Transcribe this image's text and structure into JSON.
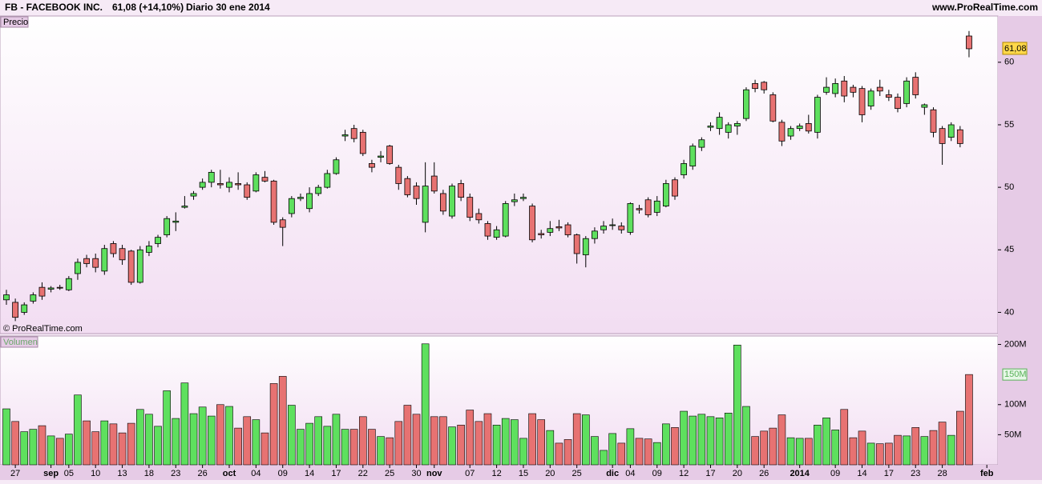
{
  "header": {
    "symbol": "FB - FACEBOOK INC.",
    "quote": "61,08 (+14,10%)",
    "period": "Diario  30 ene 2014",
    "site": "www.ProRealTime.com"
  },
  "chart_data": [
    {
      "type": "candlestick",
      "title": "Precio",
      "watermark": "© ProRealTime.com",
      "up_color": "#5ee05e",
      "down_color": "#e77272",
      "ylim": [
        38.3,
        63.7
      ],
      "yticks": [
        40,
        45,
        50,
        55,
        60
      ],
      "open": [
        41.0,
        40.8,
        40.0,
        40.9,
        42.0,
        41.85,
        42.0,
        41.8,
        43.1,
        44.3,
        44.3,
        43.3,
        45.5,
        45.1,
        44.9,
        42.4,
        44.8,
        45.5,
        46.2,
        47.2,
        48.4,
        49.3,
        50.0,
        50.4,
        50.3,
        50.0,
        50.3,
        50.2,
        49.7,
        50.8,
        50.5,
        47.4,
        47.9,
        49.1,
        48.3,
        49.5,
        50.0,
        51.1,
        54.1,
        54.7,
        54.4,
        51.9,
        52.4,
        53.3,
        51.6,
        50.7,
        50.1,
        47.2,
        50.9,
        49.5,
        47.7,
        50.3,
        49.2,
        47.9,
        47.1,
        46.0,
        46.1,
        48.85,
        49.1,
        48.5,
        46.3,
        46.4,
        46.85,
        47.0,
        46.2,
        44.6,
        45.9,
        46.6,
        46.95,
        46.9,
        46.4,
        48.3,
        49.0,
        48.0,
        48.5,
        50.6,
        51.0,
        51.7,
        53.2,
        54.8,
        54.7,
        54.4,
        54.9,
        55.5,
        58.3,
        58.4,
        57.4,
        55.2,
        54.1,
        54.7,
        55.1,
        54.4,
        57.6,
        57.5,
        58.5,
        58.0,
        57.9,
        56.5,
        58.0,
        57.4,
        57.2,
        56.7,
        58.8,
        56.4,
        56.2,
        54.7,
        54.0,
        54.6,
        62.1,
        null,
        null
      ],
      "high": [
        41.8,
        41.1,
        40.8,
        41.6,
        42.4,
        42.1,
        42.2,
        42.9,
        44.3,
        44.6,
        44.7,
        45.4,
        45.7,
        45.4,
        45.0,
        45.3,
        45.7,
        46.2,
        47.7,
        48.0,
        49.3,
        49.7,
        50.7,
        51.4,
        51.4,
        50.8,
        51.2,
        50.4,
        51.2,
        51.3,
        50.6,
        47.6,
        49.3,
        49.5,
        50.0,
        50.2,
        51.4,
        52.4,
        54.6,
        55.0,
        54.6,
        52.2,
        52.9,
        53.4,
        51.8,
        50.9,
        50.4,
        52.0,
        52.0,
        49.8,
        50.3,
        50.6,
        49.5,
        48.3,
        47.3,
        46.9,
        48.9,
        49.5,
        49.5,
        48.7,
        46.6,
        47.3,
        47.4,
        47.2,
        46.3,
        46.1,
        46.8,
        47.3,
        47.5,
        47.2,
        48.8,
        48.6,
        49.2,
        49.3,
        50.6,
        50.8,
        52.2,
        53.5,
        54.0,
        55.2,
        56.0,
        55.2,
        55.3,
        58.0,
        58.6,
        58.5,
        57.6,
        55.4,
        54.9,
        55.1,
        55.8,
        57.4,
        58.8,
        58.7,
        58.9,
        58.2,
        58.1,
        57.9,
        58.6,
        57.8,
        57.5,
        58.8,
        59.2,
        56.7,
        56.4,
        54.9,
        55.2,
        54.9,
        62.5,
        null,
        null
      ],
      "low": [
        40.6,
        39.3,
        39.8,
        40.7,
        41.0,
        41.6,
        41.8,
        41.7,
        42.6,
        43.6,
        43.2,
        43.0,
        44.4,
        43.8,
        42.2,
        42.3,
        44.5,
        45.2,
        46.0,
        46.5,
        48.3,
        49.0,
        49.8,
        50.0,
        49.9,
        49.6,
        49.8,
        49.0,
        49.6,
        50.4,
        47.0,
        45.3,
        47.6,
        48.9,
        48.0,
        49.3,
        49.9,
        51.0,
        53.7,
        53.6,
        52.5,
        51.2,
        52.0,
        51.8,
        49.8,
        49.2,
        48.6,
        46.4,
        49.5,
        47.8,
        47.5,
        48.9,
        47.3,
        47.1,
        45.8,
        45.8,
        46.0,
        48.5,
        48.9,
        45.6,
        45.9,
        46.1,
        46.5,
        46.0,
        43.9,
        43.6,
        45.5,
        46.3,
        46.6,
        46.3,
        46.2,
        47.9,
        47.6,
        47.7,
        48.4,
        49.0,
        50.7,
        51.4,
        52.9,
        54.5,
        54.2,
        53.9,
        54.2,
        55.3,
        57.6,
        57.5,
        55.2,
        53.3,
        53.8,
        54.5,
        54.3,
        53.9,
        57.4,
        57.2,
        56.8,
        57.2,
        55.2,
        56.2,
        57.3,
        56.9,
        56.0,
        56.4,
        57.1,
        55.8,
        54.0,
        51.8,
        53.7,
        53.2,
        60.4,
        null,
        null
      ],
      "close": [
        41.4,
        39.6,
        40.6,
        41.4,
        41.3,
        41.95,
        41.95,
        42.7,
        44.0,
        43.9,
        43.6,
        45.1,
        44.7,
        44.2,
        42.4,
        45.0,
        45.3,
        46.0,
        47.5,
        47.3,
        48.5,
        49.5,
        50.4,
        51.2,
        50.2,
        50.4,
        50.2,
        49.2,
        51.0,
        50.5,
        47.2,
        46.8,
        49.1,
        49.2,
        49.5,
        50.0,
        51.1,
        52.2,
        54.2,
        53.9,
        52.7,
        51.6,
        52.5,
        51.9,
        50.3,
        49.4,
        49.1,
        50.1,
        49.7,
        48.1,
        50.1,
        49.2,
        47.6,
        47.4,
        46.1,
        46.6,
        48.7,
        49.0,
        49.2,
        45.8,
        46.2,
        46.7,
        46.75,
        46.2,
        44.7,
        45.9,
        46.5,
        46.9,
        47.0,
        46.6,
        48.7,
        48.2,
        47.8,
        48.9,
        50.3,
        49.3,
        51.9,
        53.3,
        53.8,
        54.9,
        55.6,
        55.0,
        55.1,
        57.8,
        57.9,
        57.8,
        55.3,
        53.7,
        54.7,
        54.9,
        54.5,
        57.2,
        58.0,
        58.3,
        57.3,
        57.6,
        55.8,
        57.7,
        57.7,
        57.2,
        56.3,
        58.5,
        57.4,
        56.6,
        54.4,
        53.5,
        55.0,
        53.5,
        61.08,
        null,
        null
      ],
      "value_labels": [
        null,
        null,
        null,
        null,
        null,
        null,
        null,
        null,
        null,
        null,
        null,
        null,
        null,
        null,
        null,
        null,
        null,
        null,
        null,
        null,
        null,
        null,
        null,
        null,
        null,
        null,
        null,
        null,
        null,
        null,
        null,
        null,
        null,
        null,
        null,
        null,
        null,
        null,
        null,
        null,
        null,
        null,
        null,
        null,
        null,
        null,
        null,
        null,
        null,
        null,
        null,
        null,
        null,
        null,
        null,
        null,
        null,
        null,
        null,
        null,
        null,
        null,
        null,
        null,
        null,
        null,
        null,
        null,
        null,
        null,
        null,
        null,
        null,
        null,
        null,
        null,
        null,
        null,
        null,
        null,
        null,
        null,
        null,
        null,
        null,
        null,
        null,
        null,
        null,
        null,
        null,
        null,
        null,
        null,
        null,
        null,
        null,
        null,
        null,
        null,
        null,
        null,
        null,
        null,
        null,
        null,
        null,
        null,
        "61,08",
        null,
        null
      ]
    },
    {
      "type": "bar",
      "title": "Volumen",
      "categories": [
        null,
        "27",
        null,
        null,
        null,
        "sep",
        null,
        "05",
        null,
        null,
        "10",
        null,
        null,
        "13",
        null,
        null,
        "18",
        null,
        null,
        "23",
        null,
        null,
        "26",
        null,
        null,
        "oct",
        null,
        null,
        "04",
        null,
        null,
        "09",
        null,
        null,
        "14",
        null,
        null,
        "17",
        null,
        null,
        "22",
        null,
        null,
        "25",
        null,
        null,
        "30",
        null,
        "nov",
        null,
        null,
        null,
        "07",
        null,
        null,
        "12",
        null,
        null,
        "15",
        null,
        null,
        "20",
        null,
        null,
        "25",
        null,
        null,
        null,
        "dic",
        null,
        "04",
        null,
        null,
        "09",
        null,
        null,
        "12",
        null,
        null,
        "17",
        null,
        null,
        "20",
        null,
        null,
        "26",
        null,
        null,
        null,
        "2014",
        null,
        null,
        null,
        "09",
        null,
        null,
        "14",
        null,
        null,
        "17",
        null,
        null,
        "23",
        null,
        null,
        "28",
        null,
        null,
        null,
        null,
        "feb"
      ],
      "values": [
        93,
        72,
        55,
        59,
        65,
        48,
        44,
        51,
        116,
        73,
        55,
        73,
        68,
        53,
        69,
        92,
        84,
        64,
        123,
        77,
        136,
        85,
        96,
        81,
        100,
        97,
        61,
        80,
        75,
        53,
        135,
        147,
        99,
        59,
        69,
        80,
        64,
        84,
        59,
        59,
        80,
        59,
        47,
        45,
        72,
        99,
        84,
        201,
        80,
        80,
        63,
        66,
        91,
        72,
        85,
        66,
        77,
        75,
        44,
        85,
        75,
        57,
        36,
        42,
        85,
        83,
        47,
        24,
        52,
        36,
        60,
        44,
        43,
        37,
        68,
        62,
        89,
        81,
        84,
        80,
        78,
        86,
        199,
        97,
        47,
        56,
        61,
        83,
        45,
        44,
        44,
        66,
        78,
        58,
        92,
        45,
        56,
        36,
        35,
        36,
        49,
        48,
        62,
        47,
        57,
        71,
        49,
        89,
        150,
        null,
        null
      ],
      "value_labels": [
        null,
        null,
        null,
        null,
        null,
        null,
        null,
        null,
        null,
        null,
        null,
        null,
        null,
        null,
        null,
        null,
        null,
        null,
        null,
        null,
        null,
        null,
        null,
        null,
        null,
        null,
        null,
        null,
        null,
        null,
        null,
        null,
        null,
        null,
        null,
        null,
        null,
        null,
        null,
        null,
        null,
        null,
        null,
        null,
        null,
        null,
        null,
        null,
        null,
        null,
        null,
        null,
        null,
        null,
        null,
        null,
        null,
        null,
        null,
        null,
        null,
        null,
        null,
        null,
        null,
        null,
        null,
        null,
        null,
        null,
        null,
        null,
        null,
        null,
        null,
        null,
        null,
        null,
        null,
        null,
        null,
        null,
        null,
        null,
        null,
        null,
        null,
        null,
        null,
        null,
        null,
        null,
        null,
        null,
        null,
        null,
        null,
        null,
        null,
        null,
        null,
        null,
        null,
        null,
        null,
        null,
        null,
        null,
        "150M",
        null,
        null
      ],
      "ylim": [
        0,
        214
      ],
      "yticks": [
        {
          "value": 50,
          "label": "50M"
        },
        {
          "value": 100,
          "label": "100M"
        },
        {
          "value": 200,
          "label": "200M"
        }
      ]
    }
  ]
}
